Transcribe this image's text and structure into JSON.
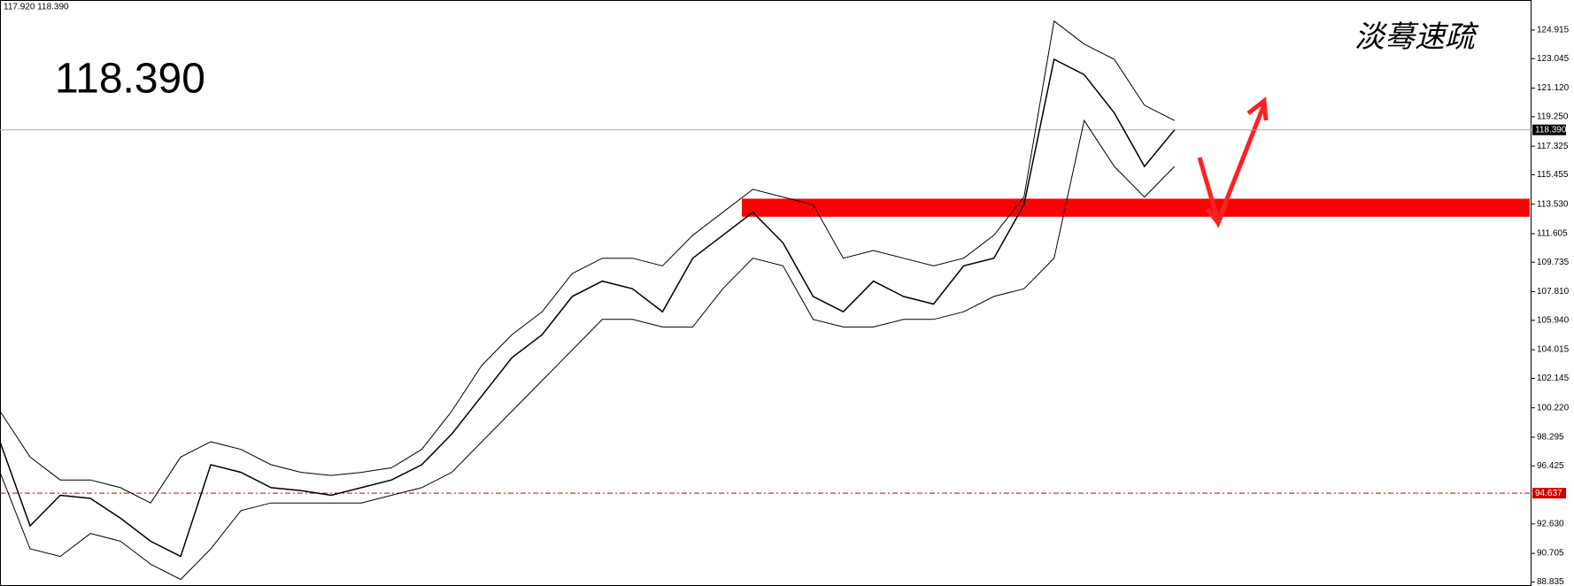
{
  "chart_data": {
    "type": "line",
    "info_text": "117.920 118.390",
    "headline": "118.390",
    "signature": "淡蓦速疏",
    "categories": [
      null,
      null,
      null,
      null,
      null,
      null,
      null,
      null,
      null,
      null,
      null,
      null,
      null,
      null,
      null,
      null,
      null,
      null,
      null,
      null,
      null,
      null,
      null,
      null,
      null,
      null,
      null,
      null,
      null,
      null,
      null,
      null,
      null,
      null,
      null,
      null,
      null,
      null,
      null,
      null
    ],
    "series": [
      {
        "color": "#000000",
        "values": [
          98,
          92.5,
          94.5,
          94.3,
          93,
          91.5,
          90.5,
          96.5,
          96,
          95,
          94.8,
          94.5,
          95,
          95.5,
          96.5,
          98.5,
          101,
          103.5,
          105,
          107.5,
          108.5,
          108,
          106.5,
          110,
          111.5,
          113,
          111,
          107.5,
          106.5,
          108.5,
          107.5,
          107,
          109.5,
          110,
          113.5,
          123,
          122,
          119.5,
          116,
          118.39
        ]
      },
      {
        "color": "#000000",
        "values": [
          100,
          97,
          95.5,
          95.5,
          95,
          94,
          97,
          98,
          97.5,
          96.5,
          96,
          95.8,
          96,
          96.3,
          97.5,
          100,
          103,
          105,
          106.5,
          109,
          110,
          110,
          109.5,
          111.5,
          113,
          114.5,
          114,
          113.5,
          110,
          110.5,
          110,
          109.5,
          110,
          111.5,
          114,
          125.5,
          124,
          123,
          120,
          119
        ]
      },
      {
        "color": "#000000",
        "values": [
          96,
          91,
          90.5,
          92,
          91.5,
          90,
          89,
          91,
          93.5,
          94,
          94,
          94,
          94,
          94.5,
          95,
          96,
          98,
          100,
          102,
          104,
          106,
          106,
          105.5,
          105.5,
          108,
          110,
          109.5,
          106,
          105.5,
          105.5,
          106,
          106,
          106.5,
          107.5,
          108,
          110,
          119,
          116,
          114,
          116
        ]
      }
    ],
    "price_lines": [
      {
        "value": 118.39,
        "label": "118.390",
        "color": "#000000"
      },
      {
        "value": 94.637,
        "label": "94.637",
        "color": "#cc0000"
      }
    ],
    "support_zone": [
      112.71,
      113.89
    ],
    "zone_color": "#ff0000",
    "ylim": [
      88.57,
      126.88
    ],
    "yticks": [
      {
        "value": 124.915,
        "label": "124.915"
      },
      {
        "value": 123.045,
        "label": "123.045"
      },
      {
        "value": 121.12,
        "label": "121.120"
      },
      {
        "value": 119.25,
        "label": "119.250"
      },
      {
        "value": 117.325,
        "label": "117.325"
      },
      {
        "value": 115.455,
        "label": "115.455"
      },
      {
        "value": 113.53,
        "label": "113.530"
      },
      {
        "value": 111.605,
        "label": "111.605"
      },
      {
        "value": 109.735,
        "label": "109.735"
      },
      {
        "value": 107.81,
        "label": "107.810"
      },
      {
        "value": 105.94,
        "label": "105.940"
      },
      {
        "value": 104.015,
        "label": "104.015"
      },
      {
        "value": 102.145,
        "label": "102.145"
      },
      {
        "value": 100.22,
        "label": "100.220"
      },
      {
        "value": 98.295,
        "label": "98.295"
      },
      {
        "value": 96.425,
        "label": "96.425"
      },
      {
        "value": 92.63,
        "label": "92.630"
      },
      {
        "value": 90.705,
        "label": "90.705"
      },
      {
        "value": 88.835,
        "label": "88.835"
      }
    ]
  }
}
